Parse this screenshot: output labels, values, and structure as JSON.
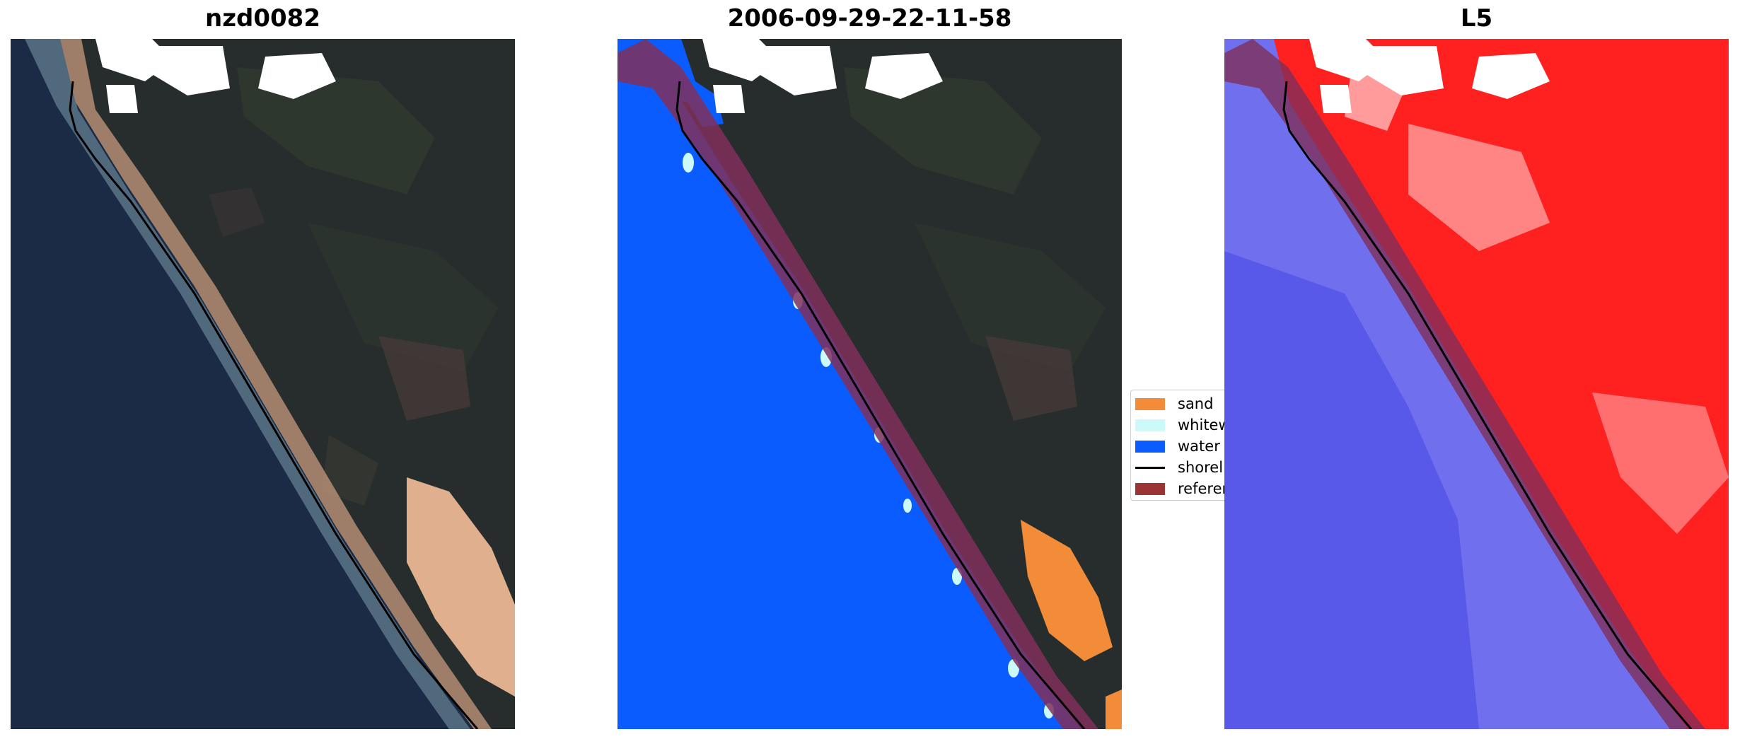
{
  "panels": [
    {
      "title": "nzd0082"
    },
    {
      "title": "2006-09-29-22-11-58"
    },
    {
      "title": "L5"
    }
  ],
  "legend": {
    "items": [
      {
        "label": "sand",
        "color": "#f28c38",
        "kind": "patch"
      },
      {
        "label": "whitewater",
        "color": "#ccfafa",
        "kind": "patch"
      },
      {
        "label": "water",
        "color": "#0a5cff",
        "kind": "patch"
      },
      {
        "label": "shoreline",
        "color": "#000000",
        "kind": "line"
      },
      {
        "label": "reference shoreline buffer",
        "color": "#9b3434",
        "kind": "patch"
      }
    ]
  },
  "colors": {
    "ocean": "#1c2b45",
    "land": "#252b2c",
    "sand_rgb": "#e0b08e",
    "water_class": "#0a5cff",
    "buffer": "#80305a",
    "index_positive": "#ff2020",
    "index_negative": "#3535e0",
    "cloud_mask": "#ffffff"
  }
}
